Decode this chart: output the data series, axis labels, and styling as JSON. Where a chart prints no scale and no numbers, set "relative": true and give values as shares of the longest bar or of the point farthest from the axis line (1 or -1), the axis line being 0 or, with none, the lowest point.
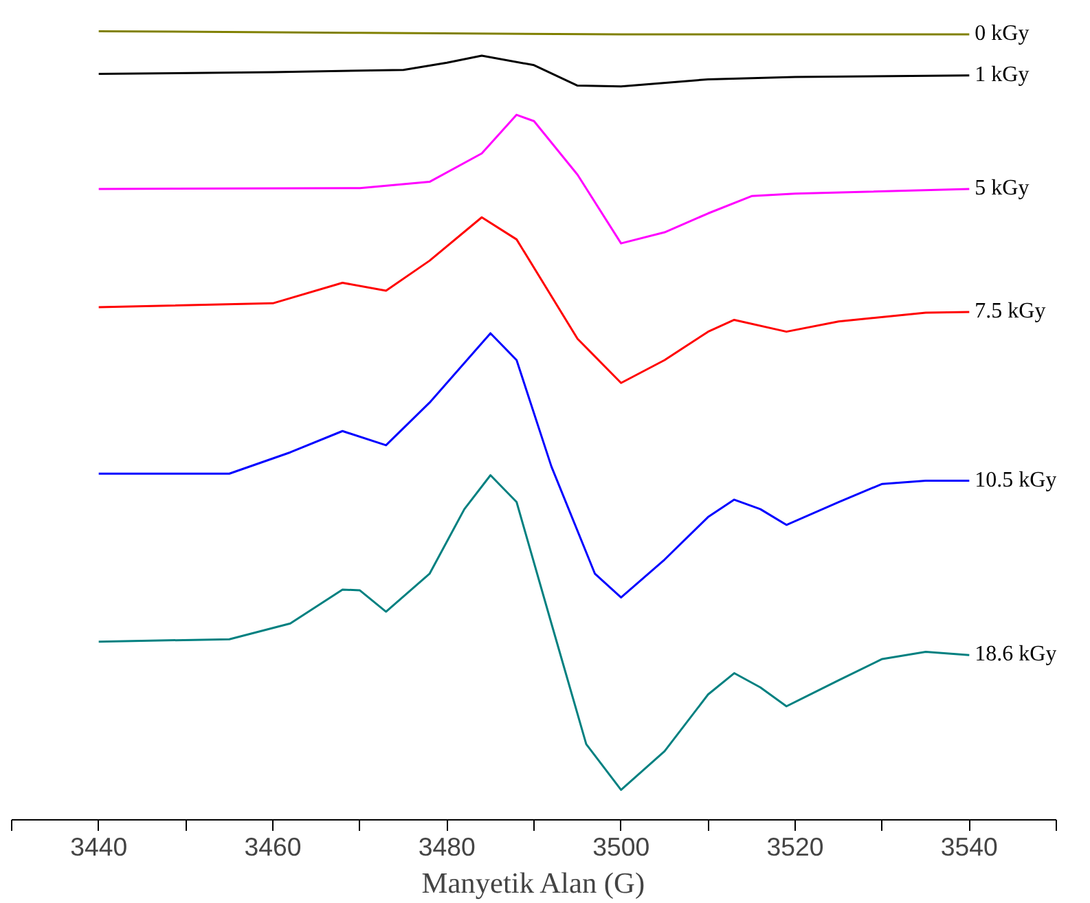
{
  "chart_data": {
    "type": "line",
    "relative": true,
    "xlabel": "Manyetik Alan (G)",
    "xlim": [
      3430,
      3550
    ],
    "xticks": [
      {
        "value": 3430,
        "label": null
      },
      3440,
      {
        "value": 3450,
        "label": null
      },
      3460,
      {
        "value": 3470,
        "label": null
      },
      3480,
      {
        "value": 3490,
        "label": null
      },
      3500,
      {
        "value": 3510,
        "label": null
      },
      3520,
      {
        "value": 3530,
        "label": null
      },
      3540,
      {
        "value": 3550,
        "label": null
      }
    ],
    "grid": false,
    "legend": false,
    "tick_labels": "x",
    "series": [
      {
        "name": "0 kGy",
        "color": "#808000",
        "x": [
          3440,
          3470,
          3500,
          3520,
          3540
        ],
        "values": [
          1.0,
          0.998,
          0.996,
          0.996,
          0.996
        ]
      },
      {
        "name": "1 kGy",
        "color": "#000000",
        "x": [
          3440,
          3460,
          3475,
          3480,
          3484,
          3490,
          3495,
          3500,
          3510,
          3520,
          3540
        ],
        "values": [
          0.946,
          0.948,
          0.951,
          0.96,
          0.969,
          0.957,
          0.931,
          0.93,
          0.939,
          0.942,
          0.944
        ]
      },
      {
        "name": "5 kGy",
        "color": "#ff00ff",
        "x": [
          3440,
          3470,
          3478,
          3484,
          3488,
          3490,
          3495,
          3500,
          3505,
          3510,
          3515,
          3520,
          3540
        ],
        "values": [
          0.8,
          0.801,
          0.809,
          0.845,
          0.894,
          0.886,
          0.818,
          0.731,
          0.745,
          0.769,
          0.791,
          0.794,
          0.8
        ]
      },
      {
        "name": "7.5 kGy",
        "color": "#ff0000",
        "x": [
          3440,
          3460,
          3468,
          3473,
          3478,
          3484,
          3488,
          3495,
          3500,
          3505,
          3510,
          3513,
          3519,
          3525,
          3535,
          3540
        ],
        "values": [
          0.65,
          0.655,
          0.681,
          0.671,
          0.709,
          0.764,
          0.736,
          0.61,
          0.554,
          0.583,
          0.619,
          0.634,
          0.619,
          0.632,
          0.643,
          0.644
        ]
      },
      {
        "name": "10.5 kGy",
        "color": "#0000ff",
        "x": [
          3440,
          3455,
          3462,
          3468,
          3473,
          3478,
          3485,
          3488,
          3492,
          3497,
          3500,
          3505,
          3510,
          3513,
          3516,
          3519,
          3525,
          3530,
          3535,
          3540
        ],
        "values": [
          0.439,
          0.439,
          0.466,
          0.493,
          0.475,
          0.529,
          0.617,
          0.583,
          0.448,
          0.312,
          0.282,
          0.33,
          0.384,
          0.406,
          0.394,
          0.374,
          0.403,
          0.426,
          0.43,
          0.43
        ]
      },
      {
        "name": "18.6 kGy",
        "color": "#008080",
        "x": [
          3440,
          3455,
          3462,
          3468,
          3470,
          3473,
          3478,
          3482,
          3485,
          3488,
          3492,
          3496,
          3500,
          3505,
          3510,
          3513,
          3516,
          3519,
          3525,
          3530,
          3535,
          3540
        ],
        "values": [
          0.226,
          0.229,
          0.249,
          0.292,
          0.291,
          0.264,
          0.312,
          0.394,
          0.437,
          0.403,
          0.249,
          0.096,
          0.038,
          0.087,
          0.159,
          0.186,
          0.168,
          0.144,
          0.177,
          0.204,
          0.213,
          0.209
        ]
      }
    ]
  }
}
